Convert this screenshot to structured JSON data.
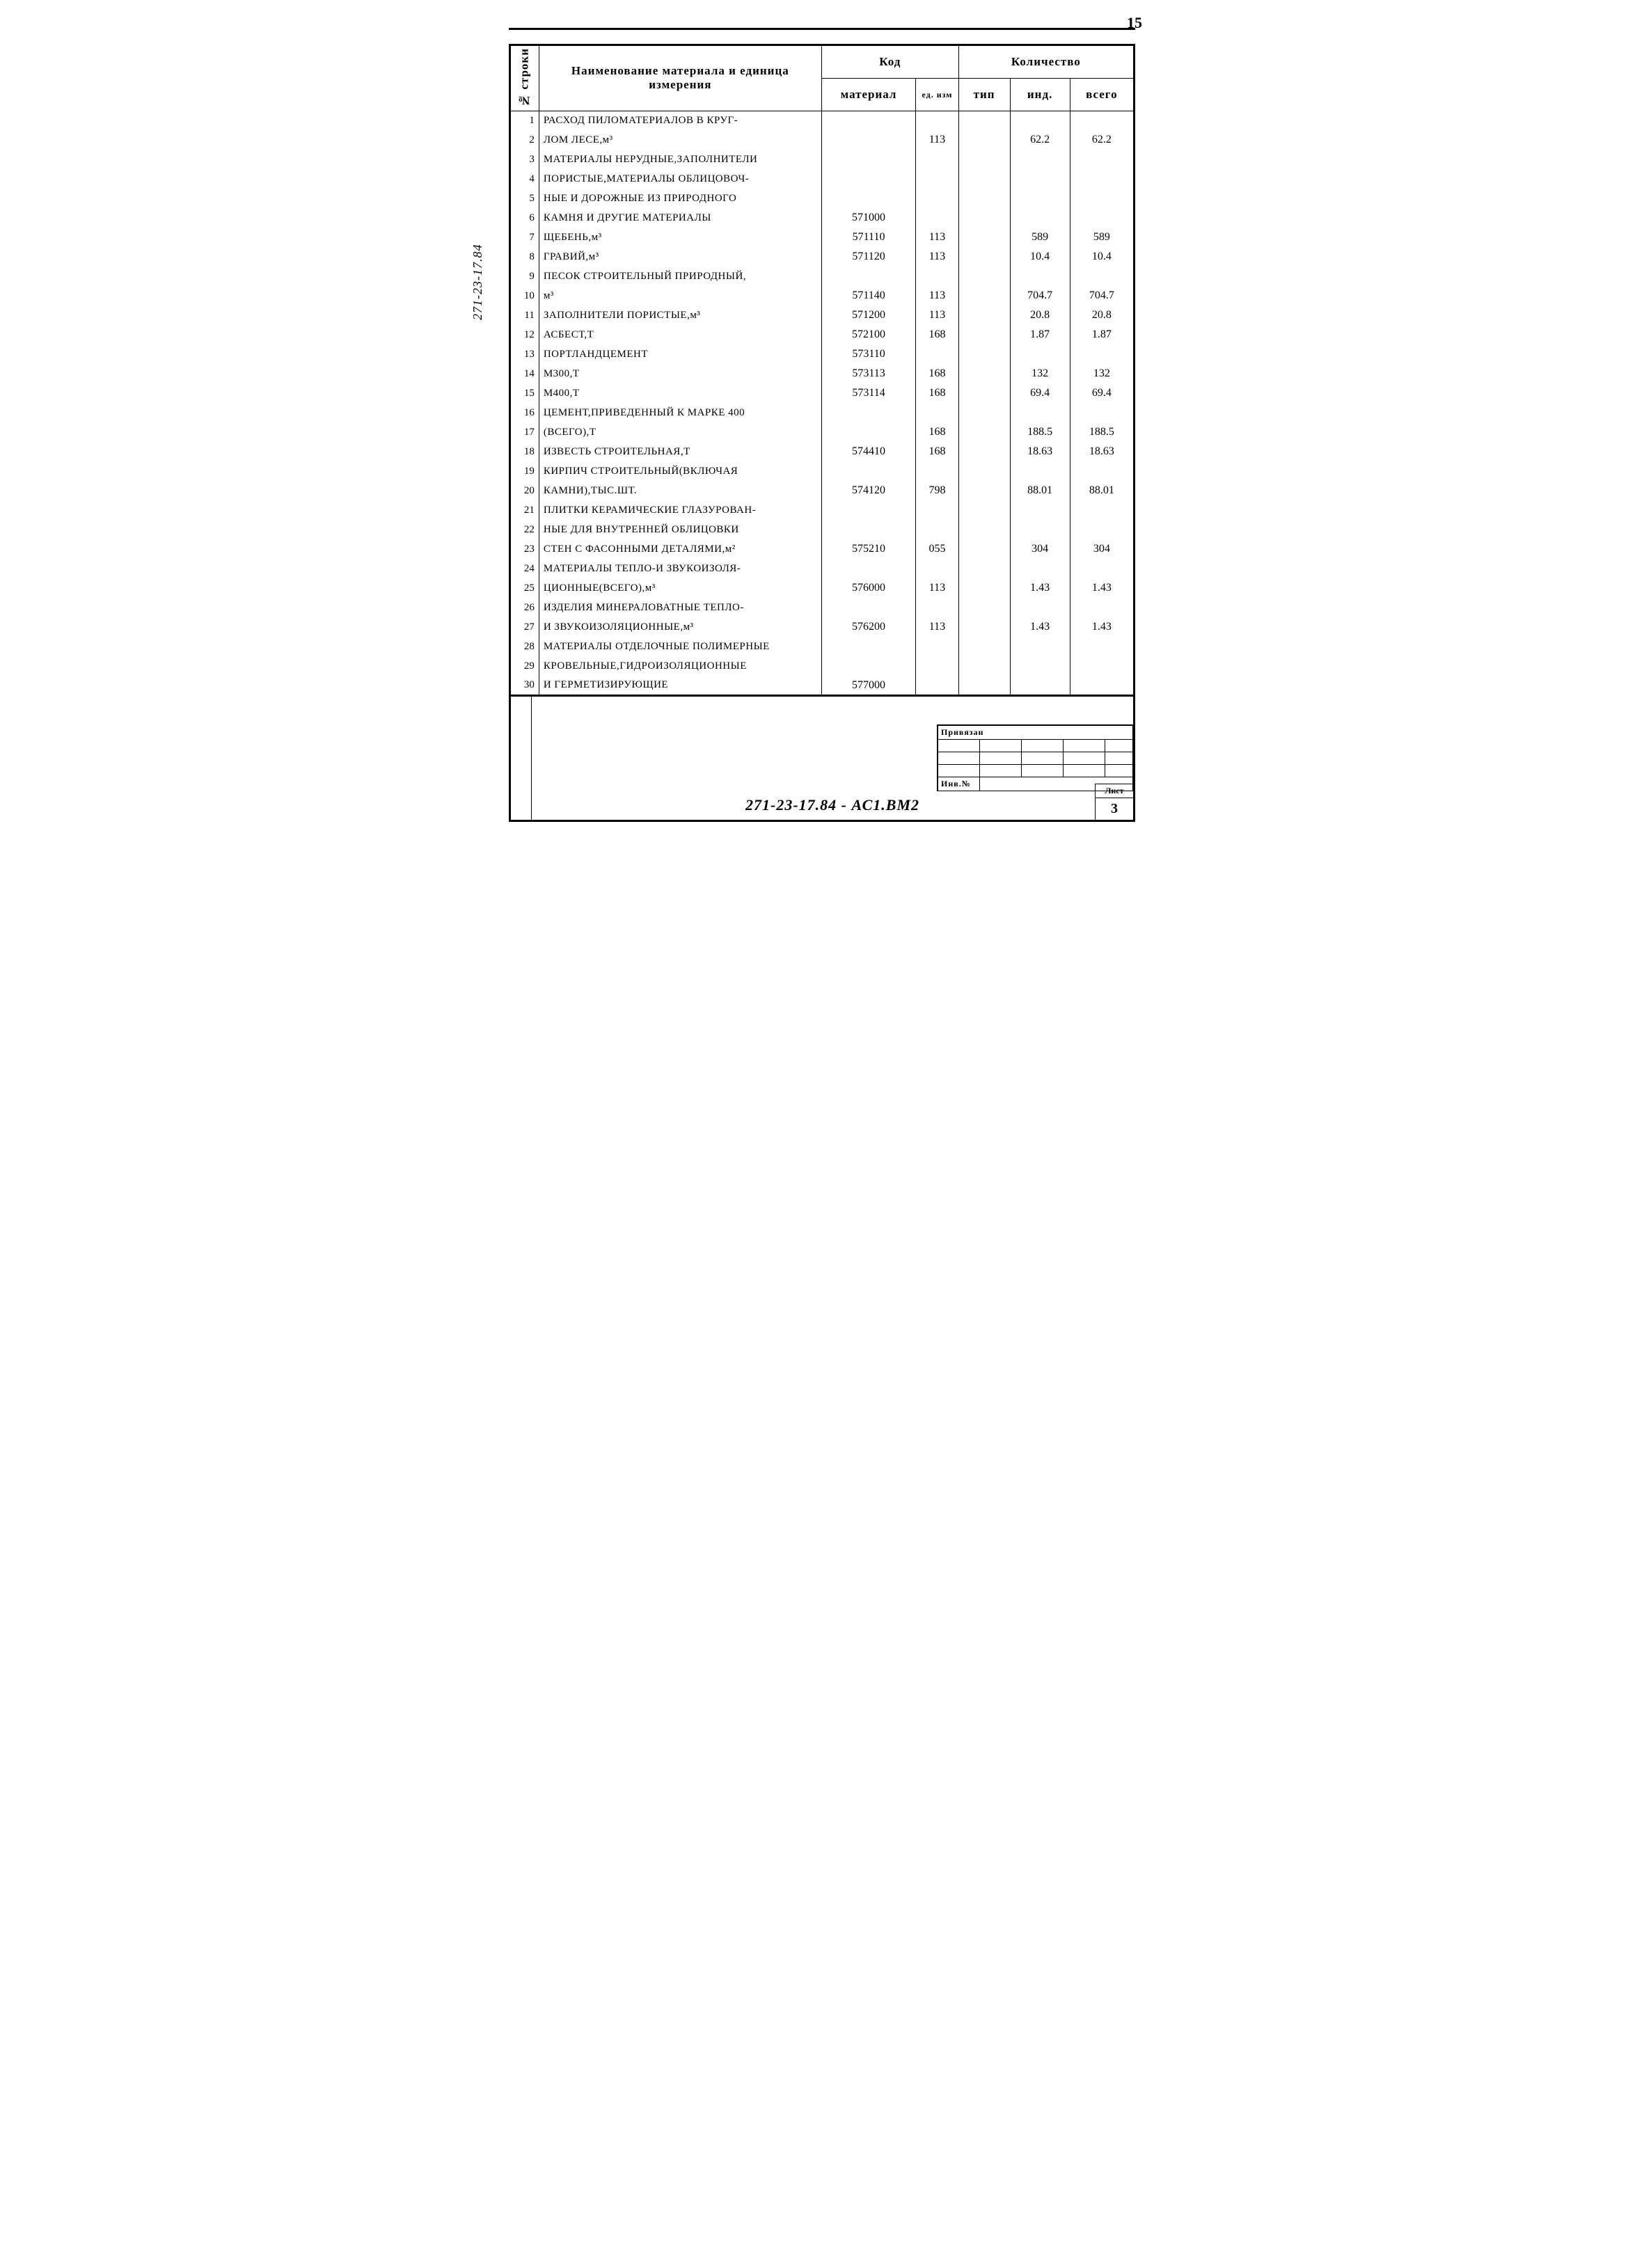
{
  "page_number": "15",
  "side_label": "271-23-17.84",
  "document_code": "271-23-17.84 - АС1.ВМ2",
  "sheet": {
    "label": "Лист",
    "number": "3"
  },
  "stamp": {
    "header": "Привязан",
    "inv_label": "Инв.№"
  },
  "headers": {
    "row_num": "№ строки",
    "name": "Наименование материала и единица измерения",
    "code": "Код",
    "material": "материал",
    "ed_izm": "ед. изм",
    "quantity": "Количество",
    "tip": "тип",
    "ind": "инд.",
    "total": "всего"
  },
  "rows": [
    {
      "n": "1",
      "name": "РАСХОД ПИЛОМАТЕРИАЛОВ В КРУГ-",
      "mat": "",
      "ed": "",
      "tip": "",
      "ind": "",
      "tot": ""
    },
    {
      "n": "2",
      "name": "ЛОМ ЛЕСЕ,м³",
      "mat": "",
      "ed": "113",
      "tip": "",
      "ind": "62.2",
      "tot": "62.2"
    },
    {
      "n": "3",
      "name": "МАТЕРИАЛЫ НЕРУДНЫЕ,ЗАПОЛНИТЕЛИ",
      "mat": "",
      "ed": "",
      "tip": "",
      "ind": "",
      "tot": ""
    },
    {
      "n": "4",
      "name": "ПОРИСТЫЕ,МАТЕРИАЛЫ ОБЛИЦОВОЧ-",
      "mat": "",
      "ed": "",
      "tip": "",
      "ind": "",
      "tot": ""
    },
    {
      "n": "5",
      "name": "НЫЕ И ДОРОЖНЫЕ ИЗ ПРИРОДНОГО",
      "mat": "",
      "ed": "",
      "tip": "",
      "ind": "",
      "tot": ""
    },
    {
      "n": "6",
      "name": "КАМНЯ И ДРУГИЕ МАТЕРИАЛЫ",
      "mat": "571000",
      "ed": "",
      "tip": "",
      "ind": "",
      "tot": ""
    },
    {
      "n": "7",
      "name": "ЩЕБЕНЬ,м³",
      "mat": "571110",
      "ed": "113",
      "tip": "",
      "ind": "589",
      "tot": "589"
    },
    {
      "n": "8",
      "name": "ГРАВИЙ,м³",
      "mat": "571120",
      "ed": "113",
      "tip": "",
      "ind": "10.4",
      "tot": "10.4"
    },
    {
      "n": "9",
      "name": "ПЕСОК СТРОИТЕЛЬНЫЙ ПРИРОДНЫЙ,",
      "mat": "",
      "ed": "",
      "tip": "",
      "ind": "",
      "tot": ""
    },
    {
      "n": "10",
      "name": "м³",
      "mat": "571140",
      "ed": "113",
      "tip": "",
      "ind": "704.7",
      "tot": "704.7"
    },
    {
      "n": "11",
      "name": "ЗАПОЛНИТЕЛИ ПОРИСТЫЕ,м³",
      "mat": "571200",
      "ed": "113",
      "tip": "",
      "ind": "20.8",
      "tot": "20.8"
    },
    {
      "n": "12",
      "name": "АСБЕСТ,Т",
      "mat": "572100",
      "ed": "168",
      "tip": "",
      "ind": "1.87",
      "tot": "1.87"
    },
    {
      "n": "13",
      "name": "ПОРТЛАНДЦЕМЕНТ",
      "mat": "573110",
      "ed": "",
      "tip": "",
      "ind": "",
      "tot": ""
    },
    {
      "n": "14",
      "name": "М300,Т",
      "mat": "573113",
      "ed": "168",
      "tip": "",
      "ind": "132",
      "tot": "132"
    },
    {
      "n": "15",
      "name": "М400,Т",
      "mat": "573114",
      "ed": "168",
      "tip": "",
      "ind": "69.4",
      "tot": "69.4"
    },
    {
      "n": "16",
      "name": "ЦЕМЕНТ,ПРИВЕДЕННЫЙ К МАРКЕ 400",
      "mat": "",
      "ed": "",
      "tip": "",
      "ind": "",
      "tot": ""
    },
    {
      "n": "17",
      "name": "(ВСЕГО),Т",
      "mat": "",
      "ed": "168",
      "tip": "",
      "ind": "188.5",
      "tot": "188.5"
    },
    {
      "n": "18",
      "name": "ИЗВЕСТЬ СТРОИТЕЛЬНАЯ,Т",
      "mat": "574410",
      "ed": "168",
      "tip": "",
      "ind": "18.63",
      "tot": "18.63"
    },
    {
      "n": "19",
      "name": "КИРПИЧ СТРОИТЕЛЬНЫЙ(ВКЛЮЧАЯ",
      "mat": "",
      "ed": "",
      "tip": "",
      "ind": "",
      "tot": ""
    },
    {
      "n": "20",
      "name": "КАМНИ),ТЫС.ШТ.",
      "mat": "574120",
      "ed": "798",
      "tip": "",
      "ind": "88.01",
      "tot": "88.01"
    },
    {
      "n": "21",
      "name": "ПЛИТКИ КЕРАМИЧЕСКИЕ ГЛАЗУРОВАН-",
      "mat": "",
      "ed": "",
      "tip": "",
      "ind": "",
      "tot": ""
    },
    {
      "n": "22",
      "name": "НЫЕ ДЛЯ ВНУТРЕННЕЙ ОБЛИЦОВКИ",
      "mat": "",
      "ed": "",
      "tip": "",
      "ind": "",
      "tot": ""
    },
    {
      "n": "23",
      "name": "СТЕН С ФАСОННЫМИ ДЕТАЛЯМИ,м²",
      "mat": "575210",
      "ed": "055",
      "tip": "",
      "ind": "304",
      "tot": "304"
    },
    {
      "n": "24",
      "name": "МАТЕРИАЛЫ ТЕПЛО-И ЗВУКОИЗОЛЯ-",
      "mat": "",
      "ed": "",
      "tip": "",
      "ind": "",
      "tot": ""
    },
    {
      "n": "25",
      "name": "ЦИОННЫЕ(ВСЕГО),м³",
      "mat": "576000",
      "ed": "113",
      "tip": "",
      "ind": "1.43",
      "tot": "1.43"
    },
    {
      "n": "26",
      "name": "ИЗДЕЛИЯ МИНЕРАЛОВАТНЫЕ ТЕПЛО-",
      "mat": "",
      "ed": "",
      "tip": "",
      "ind": "",
      "tot": ""
    },
    {
      "n": "27",
      "name": "И ЗВУКОИЗОЛЯЦИОННЫЕ,м³",
      "mat": "576200",
      "ed": "113",
      "tip": "",
      "ind": "1.43",
      "tot": "1.43"
    },
    {
      "n": "28",
      "name": "МАТЕРИАЛЫ ОТДЕЛОЧНЫЕ ПОЛИМЕРНЫЕ",
      "mat": "",
      "ed": "",
      "tip": "",
      "ind": "",
      "tot": ""
    },
    {
      "n": "29",
      "name": "КРОВЕЛЬНЫЕ,ГИДРОИЗОЛЯЦИОННЫЕ",
      "mat": "",
      "ed": "",
      "tip": "",
      "ind": "",
      "tot": ""
    },
    {
      "n": "30",
      "name": "И ГЕРМЕТИЗИРУЮЩИЕ",
      "mat": "577000",
      "ed": "",
      "tip": "",
      "ind": "",
      "tot": ""
    }
  ]
}
